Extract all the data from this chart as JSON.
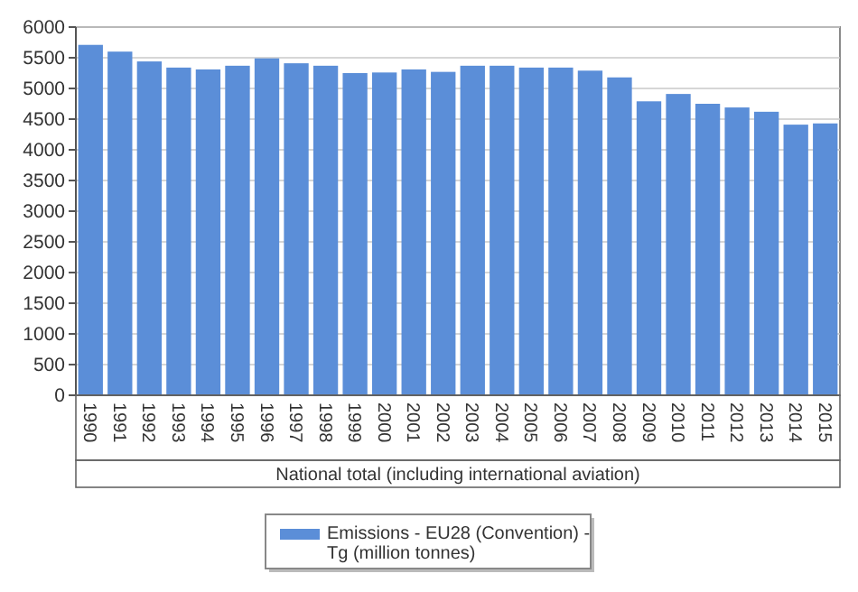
{
  "chart_data": {
    "type": "bar",
    "xlabel": "National total (including international aviation)",
    "categories": [
      "1990",
      "1991",
      "1992",
      "1993",
      "1994",
      "1995",
      "1996",
      "1997",
      "1998",
      "1999",
      "2000",
      "2001",
      "2002",
      "2003",
      "2004",
      "2005",
      "2006",
      "2007",
      "2008",
      "2009",
      "2010",
      "2011",
      "2012",
      "2013",
      "2014",
      "2015"
    ],
    "series": [
      {
        "name": "Emissions - EU28 (Convention) - Tg (million tonnes)",
        "color": "#5b8ed8",
        "values": [
          5710,
          5600,
          5440,
          5340,
          5310,
          5370,
          5490,
          5410,
          5370,
          5250,
          5260,
          5310,
          5270,
          5370,
          5370,
          5340,
          5340,
          5290,
          5180,
          4790,
          4910,
          4750,
          4690,
          4620,
          4410,
          4430
        ]
      }
    ],
    "ylim": [
      0,
      6000
    ],
    "yticks": [
      0,
      500,
      1000,
      1500,
      2000,
      2500,
      3000,
      3500,
      4000,
      4500,
      5000,
      5500,
      6000
    ],
    "grid": "y",
    "legend": "bottom"
  }
}
